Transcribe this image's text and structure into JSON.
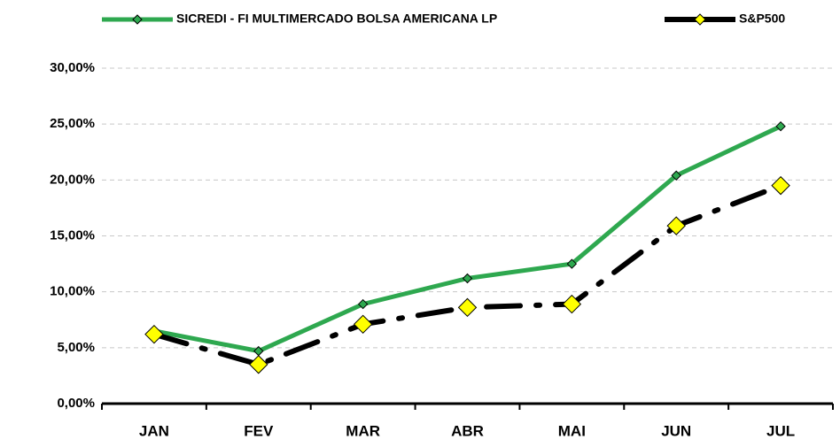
{
  "chart_data": {
    "type": "line",
    "categories": [
      "JAN",
      "FEV",
      "MAR",
      "ABR",
      "MAI",
      "JUN",
      "JUL"
    ],
    "series": [
      {
        "name": "SICREDI - FI MULTIMERCADO BOLSA AMERICANA LP",
        "color": "#2ea84f",
        "marker_color": "#2ea84f",
        "values": [
          6.5,
          4.7,
          8.9,
          11.2,
          12.5,
          20.4,
          24.8
        ]
      },
      {
        "name": "S&P500",
        "color": "#000000",
        "marker_color": "#ffff00",
        "values": [
          6.2,
          3.5,
          7.1,
          8.6,
          8.9,
          15.9,
          19.5
        ]
      }
    ],
    "ylim": [
      0,
      30
    ],
    "yticks": [
      {
        "value": 0,
        "label": "0,00%"
      },
      {
        "value": 5,
        "label": "5,00%"
      },
      {
        "value": 10,
        "label": "10,00%"
      },
      {
        "value": 15,
        "label": "15,00%"
      },
      {
        "value": 20,
        "label": "20,00%"
      },
      {
        "value": 25,
        "label": "25,00%"
      },
      {
        "value": 30,
        "label": "30,00%"
      }
    ],
    "grid": true,
    "legend": "top"
  }
}
